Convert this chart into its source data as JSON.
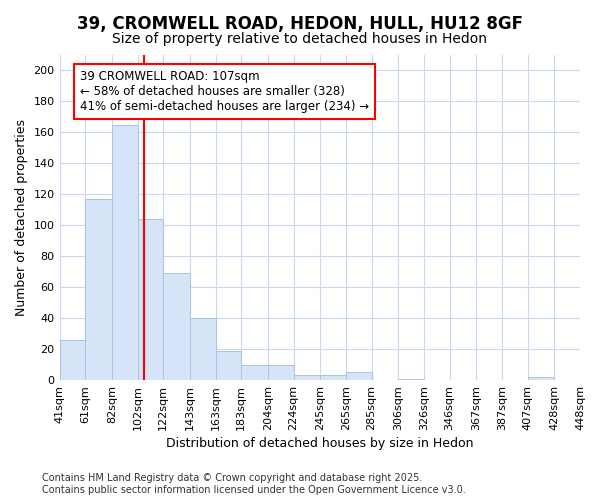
{
  "title1": "39, CROMWELL ROAD, HEDON, HULL, HU12 8GF",
  "title2": "Size of property relative to detached houses in Hedon",
  "xlabel": "Distribution of detached houses by size in Hedon",
  "ylabel": "Number of detached properties",
  "bar_heights": [
    26,
    117,
    165,
    104,
    69,
    40,
    19,
    10,
    10,
    3,
    3,
    5,
    0,
    1,
    0,
    0,
    0,
    0,
    2,
    0
  ],
  "bin_edges": [
    41,
    61,
    82,
    102,
    122,
    143,
    163,
    183,
    204,
    224,
    245,
    265,
    285,
    306,
    326,
    346,
    367,
    387,
    407,
    428,
    448
  ],
  "xtick_labels": [
    "41sqm",
    "61sqm",
    "82sqm",
    "102sqm",
    "122sqm",
    "143sqm",
    "163sqm",
    "183sqm",
    "204sqm",
    "224sqm",
    "245sqm",
    "265sqm",
    "285sqm",
    "306sqm",
    "326sqm",
    "346sqm",
    "367sqm",
    "387sqm",
    "407sqm",
    "428sqm",
    "448sqm"
  ],
  "bar_color": "#d6e4f7",
  "bar_edge_color": "#a8c4e0",
  "red_line_x": 107,
  "ylim": [
    0,
    210
  ],
  "yticks": [
    0,
    20,
    40,
    60,
    80,
    100,
    120,
    140,
    160,
    180,
    200
  ],
  "annotation_box_text": "39 CROMWELL ROAD: 107sqm\n← 58% of detached houses are smaller (328)\n41% of semi-detached houses are larger (234) →",
  "bg_color": "#ffffff",
  "grid_color": "#c8d8f0",
  "footer_text": "Contains HM Land Registry data © Crown copyright and database right 2025.\nContains public sector information licensed under the Open Government Licence v3.0.",
  "title1_fontsize": 12,
  "title2_fontsize": 10,
  "ylabel_fontsize": 9,
  "xlabel_fontsize": 9,
  "tick_fontsize": 8,
  "annotation_fontsize": 8.5,
  "footer_fontsize": 7
}
